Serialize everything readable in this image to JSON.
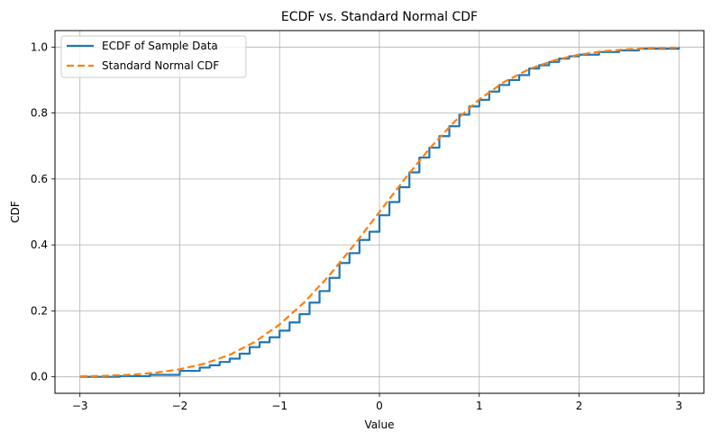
{
  "chart_data": {
    "type": "line",
    "title": "ECDF vs. Standard Normal CDF",
    "xlabel": "Value",
    "ylabel": "CDF",
    "xlim": [
      -3.25,
      3.25
    ],
    "ylim": [
      -0.05,
      1.05
    ],
    "xticks": [
      -3,
      -2,
      -1,
      0,
      1,
      2,
      3
    ],
    "xtick_labels": [
      "−3",
      "−2",
      "−1",
      "0",
      "1",
      "2",
      "3"
    ],
    "yticks": [
      0.0,
      0.2,
      0.4,
      0.6,
      0.8,
      1.0
    ],
    "ytick_labels": [
      "0.0",
      "0.2",
      "0.4",
      "0.6",
      "0.8",
      "1.0"
    ],
    "grid": true,
    "legend_position": "upper-left",
    "series": [
      {
        "name": "ECDF of Sample Data",
        "color": "#1f77b4",
        "style": "solid",
        "x": [
          -3.0,
          -2.6,
          -2.3,
          -2.0,
          -1.8,
          -1.7,
          -1.6,
          -1.5,
          -1.4,
          -1.3,
          -1.2,
          -1.1,
          -1.0,
          -0.9,
          -0.8,
          -0.7,
          -0.6,
          -0.5,
          -0.4,
          -0.3,
          -0.2,
          -0.1,
          0.0,
          0.1,
          0.2,
          0.3,
          0.4,
          0.5,
          0.6,
          0.7,
          0.8,
          0.9,
          1.0,
          1.1,
          1.2,
          1.3,
          1.4,
          1.5,
          1.6,
          1.7,
          1.8,
          1.9,
          2.0,
          2.2,
          2.4,
          2.6,
          3.0
        ],
        "y": [
          0.0,
          0.002,
          0.006,
          0.018,
          0.028,
          0.035,
          0.045,
          0.055,
          0.07,
          0.09,
          0.105,
          0.12,
          0.14,
          0.165,
          0.19,
          0.225,
          0.26,
          0.3,
          0.345,
          0.375,
          0.415,
          0.44,
          0.49,
          0.53,
          0.575,
          0.62,
          0.665,
          0.695,
          0.73,
          0.76,
          0.795,
          0.82,
          0.84,
          0.865,
          0.885,
          0.9,
          0.915,
          0.935,
          0.945,
          0.955,
          0.965,
          0.972,
          0.977,
          0.985,
          0.99,
          0.995,
          1.0
        ]
      },
      {
        "name": "Standard Normal CDF",
        "color": "#ff7f0e",
        "style": "dashed",
        "x": [
          -3.0,
          -2.75,
          -2.5,
          -2.25,
          -2.0,
          -1.75,
          -1.5,
          -1.25,
          -1.0,
          -0.75,
          -0.5,
          -0.25,
          0.0,
          0.25,
          0.5,
          0.75,
          1.0,
          1.25,
          1.5,
          1.75,
          2.0,
          2.25,
          2.5,
          2.75,
          3.0
        ],
        "y": [
          0.0013,
          0.003,
          0.0062,
          0.0122,
          0.0228,
          0.0401,
          0.0668,
          0.1056,
          0.1587,
          0.2266,
          0.3085,
          0.4013,
          0.5,
          0.5987,
          0.6915,
          0.7734,
          0.8413,
          0.8944,
          0.9332,
          0.9599,
          0.9772,
          0.9878,
          0.9938,
          0.997,
          0.9987
        ]
      }
    ]
  }
}
